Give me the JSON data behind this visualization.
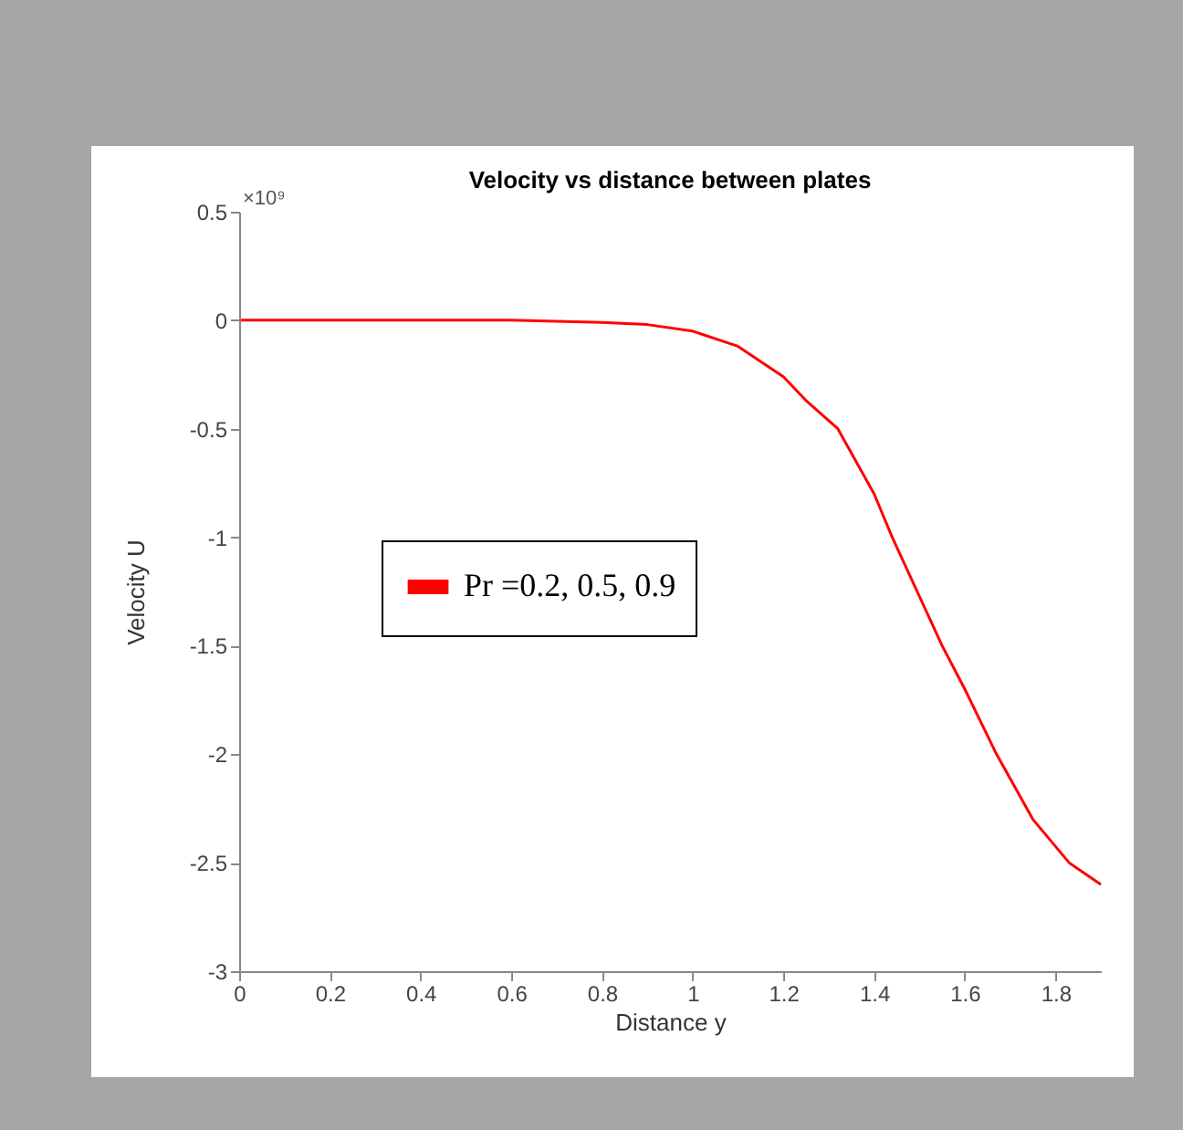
{
  "chart_data": {
    "type": "line",
    "title": "Velocity vs distance between plates",
    "xlabel": "Distance y",
    "ylabel": "Velocity U",
    "annotations": [
      "×10⁹"
    ],
    "x": [
      0,
      0.3,
      0.6,
      0.8,
      0.9,
      1.0,
      1.1,
      1.2,
      1.25,
      1.32,
      1.4,
      1.44,
      1.55,
      1.6,
      1.67,
      1.75,
      1.83,
      1.9
    ],
    "series": [
      {
        "name": "Pr =0.2, 0.5, 0.9",
        "color": "#ff0000",
        "values": [
          0,
          0,
          0,
          -0.01,
          -0.02,
          -0.05,
          -0.12,
          -0.26,
          -0.37,
          -0.5,
          -0.8,
          -1.0,
          -1.5,
          -1.7,
          -2.0,
          -2.3,
          -2.5,
          -2.6
        ]
      }
    ],
    "xlim": [
      0,
      1.9
    ],
    "ylim": [
      -3,
      0.5
    ],
    "xticks": [
      0,
      0.2,
      0.4,
      0.6,
      0.8,
      1,
      1.2,
      1.4,
      1.6,
      1.8
    ],
    "yticks": [
      -3,
      -2.5,
      -2,
      -1.5,
      -1,
      -0.5,
      0,
      0.5
    ],
    "grid": false,
    "legend": "left",
    "marker": "none",
    "line_style": "solid"
  }
}
